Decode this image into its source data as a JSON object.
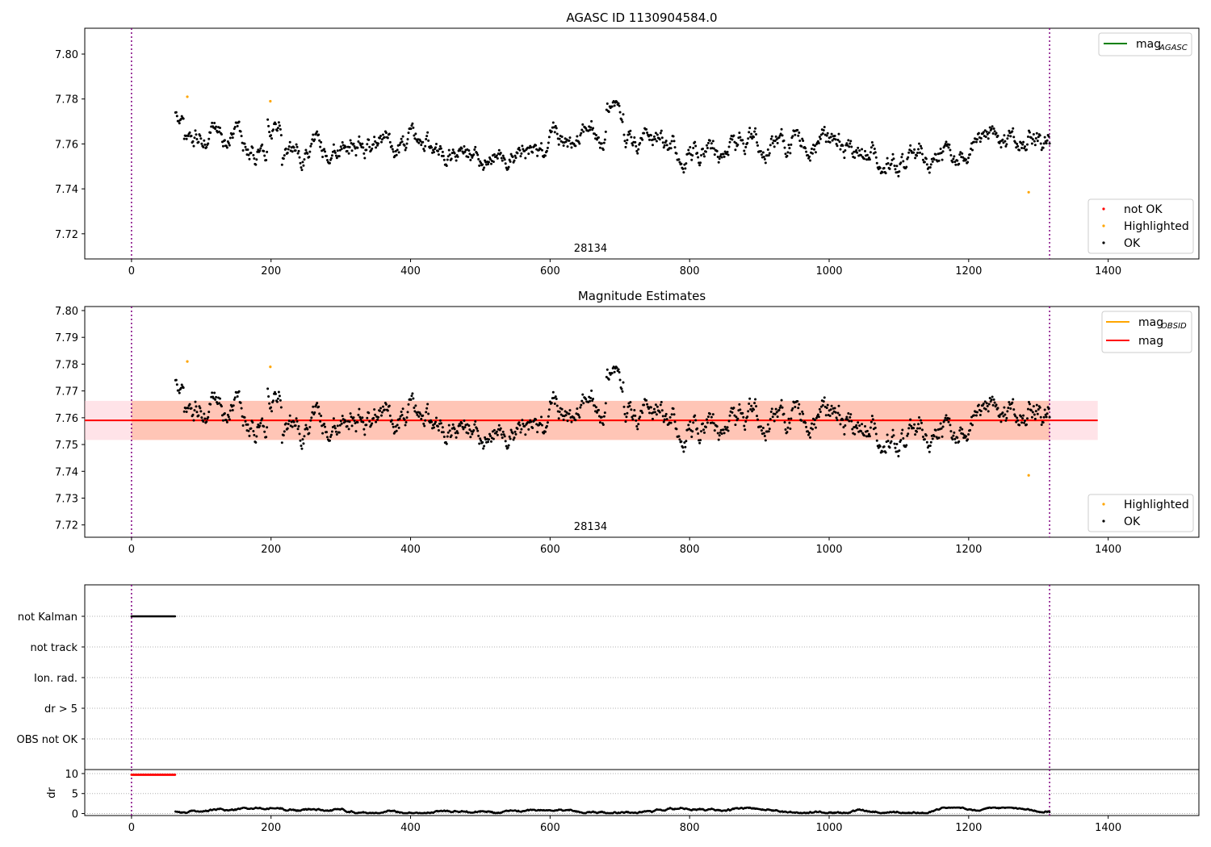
{
  "figure": {
    "title": "AGASC ID 1130904584.0"
  },
  "chart_data": [
    {
      "type": "scatter",
      "title": "AGASC ID 1130904584.0",
      "xlim": [
        -67,
        1530
      ],
      "ylim": [
        7.7088,
        7.8115
      ],
      "xticks": [
        0,
        200,
        400,
        600,
        800,
        1000,
        1200,
        1400
      ],
      "yticks": [
        7.72,
        7.74,
        7.76,
        7.78,
        7.8
      ],
      "ytick_labels": [
        "7.72",
        "7.74",
        "7.76",
        "7.78",
        "7.80"
      ],
      "vlines": [
        0,
        1316
      ],
      "annotation": {
        "text": "28134",
        "x": 658
      },
      "ok_series": {
        "x_start": 63,
        "x_end": 1316,
        "count": 1100,
        "mean": 7.759,
        "min": 7.74,
        "max": 7.779
      },
      "highlighted": [
        {
          "x": 80,
          "y": 7.781
        },
        {
          "x": 199,
          "y": 7.779
        },
        {
          "x": 1286,
          "y": 7.7385
        }
      ],
      "not_ok": [],
      "legend_top": [
        {
          "label": "mag",
          "sub": "AGASC",
          "color": "#008000",
          "kind": "line"
        }
      ],
      "legend_bottom": [
        {
          "label": "not OK",
          "color": "#ff0000",
          "kind": "dot"
        },
        {
          "label": "Highlighted",
          "color": "#ffa500",
          "kind": "dot"
        },
        {
          "label": "OK",
          "color": "#000000",
          "kind": "dot"
        }
      ]
    },
    {
      "type": "scatter",
      "title": "Magnitude Estimates",
      "xlim": [
        -67,
        1530
      ],
      "ylim": [
        7.7154,
        7.8015
      ],
      "xticks": [
        0,
        200,
        400,
        600,
        800,
        1000,
        1200,
        1400
      ],
      "yticks": [
        7.72,
        7.73,
        7.74,
        7.75,
        7.76,
        7.77,
        7.78,
        7.79,
        7.8
      ],
      "ytick_labels": [
        "7.72",
        "7.73",
        "7.74",
        "7.75",
        "7.76",
        "7.77",
        "7.78",
        "7.79",
        "7.80"
      ],
      "vlines": [
        0,
        1316
      ],
      "annotation": {
        "text": "28134",
        "x": 658
      },
      "mag_line": {
        "value": 7.759,
        "x_range": [
          -67,
          1316
        ],
        "color": "#ff0000"
      },
      "mag_obsid_line": {
        "value": 7.759,
        "x_range": [
          0,
          1316
        ],
        "color": "#ffa500"
      },
      "band_pink": {
        "y_range": [
          7.7517,
          7.7663
        ],
        "x_range": [
          -67,
          1385
        ],
        "color": "#ffc0cb"
      },
      "band_orange": {
        "y_range": [
          7.7517,
          7.7663
        ],
        "x_range": [
          0,
          1316
        ],
        "color": "#ffa07a"
      },
      "highlighted": [
        {
          "x": 80,
          "y": 7.781
        },
        {
          "x": 199,
          "y": 7.779
        },
        {
          "x": 1286,
          "y": 7.7385
        }
      ],
      "legend_top": [
        {
          "label": "mag",
          "sub": "OBSID",
          "color": "#ffa500",
          "kind": "line"
        },
        {
          "label": "mag",
          "sub": "",
          "color": "#ff0000",
          "kind": "line"
        }
      ],
      "legend_bottom": [
        {
          "label": "Highlighted",
          "color": "#ffa500",
          "kind": "dot"
        },
        {
          "label": "OK",
          "color": "#000000",
          "kind": "dot"
        }
      ]
    },
    {
      "type": "scatter",
      "title": "",
      "categories": [
        "not Kalman",
        "not track",
        "Ion. rad.",
        "dr > 5",
        "OBS not OK"
      ],
      "flag_not_kalman": {
        "x_range": [
          0,
          63
        ]
      },
      "xlim": [
        -67,
        1530
      ],
      "xticks": [
        0,
        200,
        400,
        600,
        800,
        1000,
        1200,
        1400
      ],
      "vlines": [
        0,
        1316
      ]
    },
    {
      "type": "scatter",
      "title": "",
      "ylabel": "dr",
      "ylim": [
        -0.5,
        11
      ],
      "yticks": [
        0,
        5,
        10
      ],
      "ytick_labels": [
        "0",
        "5",
        "10"
      ],
      "xlim": [
        -67,
        1530
      ],
      "xticks": [
        0,
        200,
        400,
        600,
        800,
        1000,
        1200,
        1400
      ],
      "red_dr": {
        "x_range": [
          0,
          63
        ],
        "value": 9.7
      },
      "vlines": [
        0,
        1316
      ]
    }
  ]
}
